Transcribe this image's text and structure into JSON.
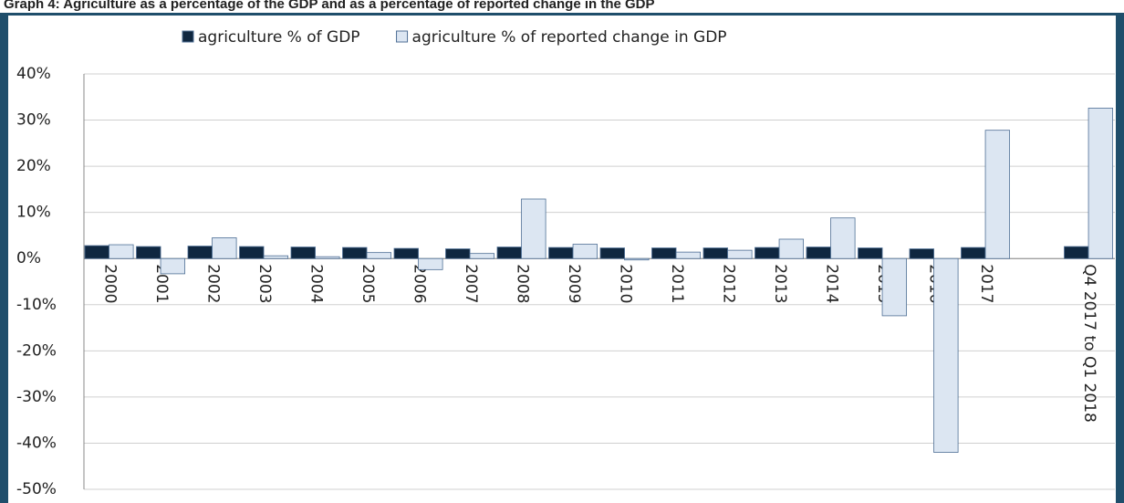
{
  "chart_data": {
    "type": "bar",
    "title": "Graph 4: Agriculture as a percentage of the GDP and as a percentage of reported change in the GDP",
    "categories": [
      "2000",
      "2001",
      "2002",
      "2003",
      "2004",
      "2005",
      "2006",
      "2007",
      "2008",
      "2009",
      "2010",
      "2011",
      "2012",
      "2013",
      "2014",
      "2015",
      "2016",
      "2017",
      null,
      "Q4 2017 to Q1 2018"
    ],
    "series": [
      {
        "name": "agriculture % of GDP",
        "color": "#0f2740",
        "values": [
          2.8,
          2.6,
          2.7,
          2.6,
          2.5,
          2.4,
          2.2,
          2.1,
          2.5,
          2.4,
          2.3,
          2.3,
          2.3,
          2.4,
          2.5,
          2.3,
          2.1,
          2.4,
          null,
          2.6
        ]
      },
      {
        "name": "agriculture % of reported change in GDP",
        "color": "#dce6f2",
        "values": [
          3.0,
          -3.3,
          4.5,
          0.6,
          0.4,
          1.3,
          -2.4,
          1.1,
          12.9,
          3.1,
          -0.3,
          1.4,
          1.8,
          4.2,
          8.8,
          -12.4,
          -42.0,
          27.8,
          null,
          32.6
        ]
      }
    ],
    "ylim": [
      -50,
      40
    ],
    "yticks": [
      {
        "value": -50,
        "label": "-50%"
      },
      {
        "value": -40,
        "label": "-40%"
      },
      {
        "value": -30,
        "label": "-30%"
      },
      {
        "value": -20,
        "label": "-20%"
      },
      {
        "value": -10,
        "label": "-10%"
      },
      {
        "value": 0,
        "label": "0%"
      },
      {
        "value": 10,
        "label": "10%"
      },
      {
        "value": 20,
        "label": "20%"
      },
      {
        "value": 30,
        "label": "30%"
      },
      {
        "value": 40,
        "label": "40%"
      }
    ],
    "grid": true
  }
}
